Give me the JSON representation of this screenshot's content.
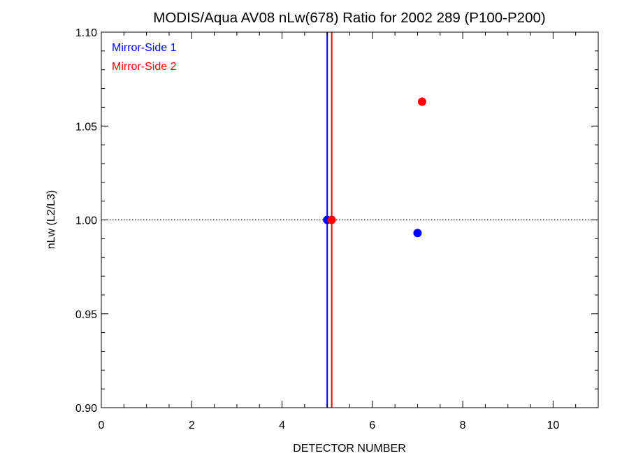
{
  "chart_data": {
    "type": "scatter",
    "title": "MODIS/Aqua AV08 nLw(678) Ratio for 2002 289 (P100-P200)",
    "xlabel": "DETECTOR NUMBER",
    "ylabel": "nLw (L2/L3)",
    "xlim": [
      0,
      11
    ],
    "ylim": [
      0.9,
      1.1
    ],
    "x_ticks": [
      0,
      2,
      4,
      6,
      8,
      10
    ],
    "x_tick_labels": [
      "0",
      "2",
      "4",
      "6",
      "8",
      "10"
    ],
    "y_ticks": [
      0.9,
      0.95,
      1.0,
      1.05,
      1.1
    ],
    "y_tick_labels": [
      "0.90",
      "0.95",
      "1.00",
      "1.05",
      "1.10"
    ],
    "x_minor_step": 0.5,
    "y_minor_step": 0.01,
    "reference_line": {
      "y": 1.0,
      "style": "dotted",
      "color": "#000000"
    },
    "legend_position": "top-left",
    "series": [
      {
        "name": "Mirror-Side 1",
        "color": "#0000ff",
        "points": [
          {
            "x": 5.0,
            "y": 1.0
          },
          {
            "x": 7.0,
            "y": 0.993
          }
        ],
        "vline_x": 5.0
      },
      {
        "name": "Mirror-Side 2",
        "color": "#ff0000",
        "points": [
          {
            "x": 5.1,
            "y": 1.0
          },
          {
            "x": 7.1,
            "y": 1.063
          }
        ],
        "vline_x": 5.1
      }
    ]
  }
}
